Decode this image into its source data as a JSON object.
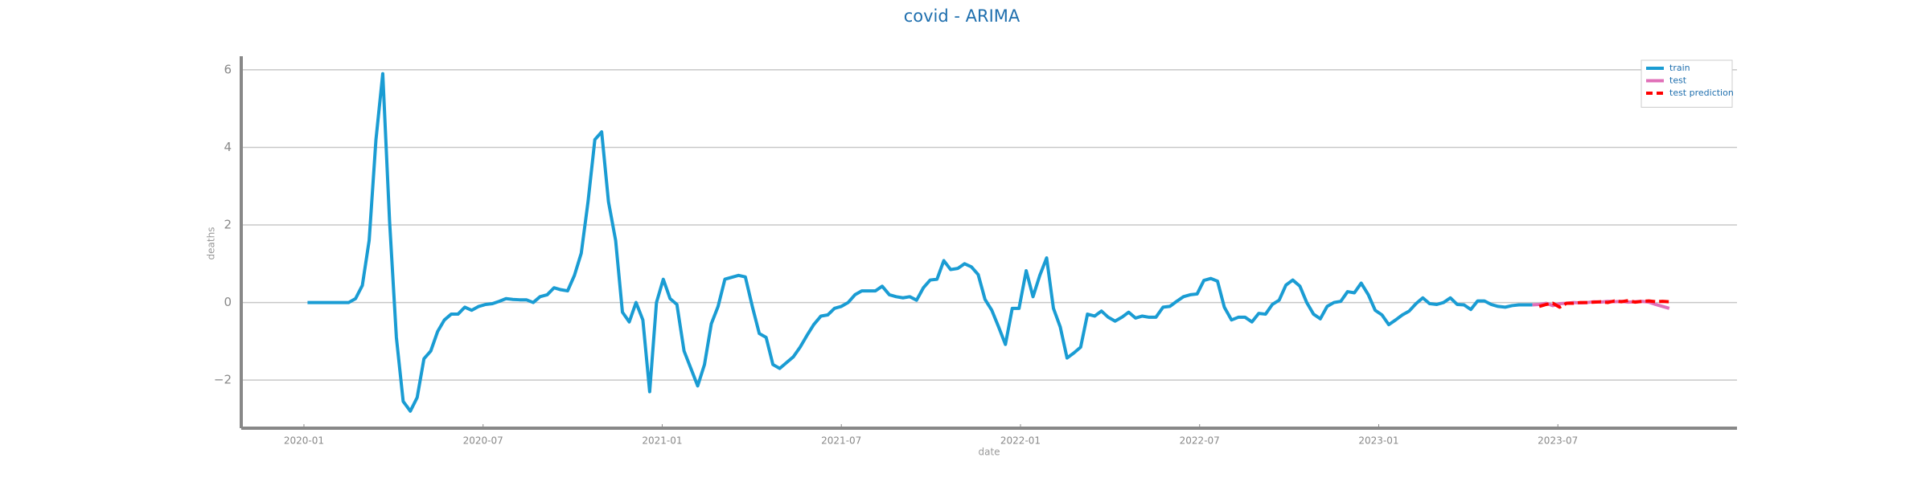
{
  "chart_data": {
    "type": "line",
    "title": "covid - ARIMA",
    "x_label": "date",
    "y_label": "deaths",
    "xlim": [
      2019.825,
      2024.0
    ],
    "ylim": [
      -3.24,
      6.35
    ],
    "xticks": [
      {
        "value": 2020.0,
        "label": "2020-01"
      },
      {
        "value": 2020.5,
        "label": "2020-07"
      },
      {
        "value": 2021.0,
        "label": "2021-01"
      },
      {
        "value": 2021.5,
        "label": "2021-07"
      },
      {
        "value": 2022.0,
        "label": "2022-01"
      },
      {
        "value": 2022.5,
        "label": "2022-07"
      },
      {
        "value": 2023.0,
        "label": "2023-01"
      },
      {
        "value": 2023.5,
        "label": "2023-07"
      }
    ],
    "yticks": [
      {
        "value": -2,
        "label": "−2"
      },
      0,
      2,
      4,
      6
    ],
    "grid": true,
    "legend": "upper right",
    "series": [
      {
        "name": "train",
        "color": "#1a9cd3",
        "dashed": false,
        "x": [
          2020.01,
          2020.029,
          2020.048,
          2020.067,
          2020.086,
          2020.106,
          2020.125,
          2020.144,
          2020.163,
          2020.182,
          2020.201,
          2020.22,
          2020.239,
          2020.258,
          2020.277,
          2020.297,
          2020.316,
          2020.335,
          2020.354,
          2020.373,
          2020.392,
          2020.411,
          2020.43,
          2020.449,
          2020.468,
          2020.488,
          2020.507,
          2020.526,
          2020.545,
          2020.564,
          2020.583,
          2020.602,
          2020.621,
          2020.64,
          2020.659,
          2020.679,
          2020.698,
          2020.717,
          2020.736,
          2020.755,
          2020.774,
          2020.793,
          2020.812,
          2020.831,
          2020.85,
          2020.87,
          2020.889,
          2020.908,
          2020.927,
          2020.946,
          2020.965,
          2020.984,
          2021.003,
          2021.022,
          2021.041,
          2021.061,
          2021.08,
          2021.099,
          2021.118,
          2021.137,
          2021.156,
          2021.175,
          2021.194,
          2021.213,
          2021.232,
          2021.252,
          2021.271,
          2021.29,
          2021.309,
          2021.328,
          2021.347,
          2021.366,
          2021.385,
          2021.404,
          2021.423,
          2021.443,
          2021.462,
          2021.481,
          2021.5,
          2021.519,
          2021.538,
          2021.557,
          2021.576,
          2021.595,
          2021.614,
          2021.634,
          2021.653,
          2021.672,
          2021.691,
          2021.71,
          2021.729,
          2021.748,
          2021.767,
          2021.786,
          2021.805,
          2021.825,
          2021.844,
          2021.863,
          2021.882,
          2021.901,
          2021.92,
          2021.939,
          2021.958,
          2021.977,
          2021.996,
          2022.016,
          2022.035,
          2022.054,
          2022.073,
          2022.092,
          2022.111,
          2022.13,
          2022.149,
          2022.168,
          2022.187,
          2022.207,
          2022.226,
          2022.245,
          2022.264,
          2022.283,
          2022.302,
          2022.321,
          2022.34,
          2022.359,
          2022.378,
          2022.398,
          2022.417,
          2022.436,
          2022.455,
          2022.474,
          2022.493,
          2022.512,
          2022.531,
          2022.55,
          2022.569,
          2022.589,
          2022.608,
          2022.627,
          2022.646,
          2022.665,
          2022.684,
          2022.703,
          2022.722,
          2022.741,
          2022.76,
          2022.78,
          2022.799,
          2022.818,
          2022.837,
          2022.856,
          2022.875,
          2022.894,
          2022.913,
          2022.932,
          2022.951,
          2022.971,
          2022.99,
          2023.009,
          2023.028,
          2023.047,
          2023.066,
          2023.085,
          2023.104,
          2023.123,
          2023.142,
          2023.162,
          2023.181,
          2023.2,
          2023.219,
          2023.238,
          2023.257,
          2023.276,
          2023.295,
          2023.314,
          2023.333,
          2023.353,
          2023.372,
          2023.391,
          2023.41,
          2023.429
        ],
        "values": [
          0,
          0,
          0,
          0,
          0,
          0,
          0,
          0.1,
          0.44,
          1.6,
          4.2,
          5.9,
          2.1,
          -0.9,
          -2.55,
          -2.8,
          -2.45,
          -1.45,
          -1.25,
          -0.75,
          -0.45,
          -0.3,
          -0.3,
          -0.12,
          -0.2,
          -0.1,
          -0.05,
          -0.03,
          0.03,
          0.1,
          0.08,
          0.07,
          0.07,
          0,
          0.15,
          0.2,
          0.38,
          0.33,
          0.3,
          0.7,
          1.27,
          2.6,
          4.2,
          4.4,
          2.6,
          1.6,
          -0.25,
          -0.5,
          0,
          -0.45,
          -2.3,
          0,
          0.6,
          0.1,
          -0.05,
          -1.25,
          -1.7,
          -2.15,
          -1.6,
          -0.55,
          -0.1,
          0.6,
          0.65,
          0.7,
          0.66,
          -0.12,
          -0.8,
          -0.9,
          -1.6,
          -1.7,
          -1.55,
          -1.4,
          -1.15,
          -0.85,
          -0.57,
          -0.35,
          -0.32,
          -0.15,
          -0.1,
          0,
          0.2,
          0.3,
          0.3,
          0.3,
          0.42,
          0.2,
          0.15,
          0.12,
          0.15,
          0.06,
          0.38,
          0.58,
          0.6,
          1.08,
          0.85,
          0.88,
          1.0,
          0.92,
          0.72,
          0.08,
          -0.2,
          -0.63,
          -1.08,
          -0.15,
          -0.15,
          0.82,
          0.15,
          0.7,
          1.15,
          -0.15,
          -0.63,
          -1.43,
          -1.3,
          -1.15,
          -0.3,
          -0.35,
          -0.22,
          -0.38,
          -0.48,
          -0.38,
          -0.25,
          -0.4,
          -0.35,
          -0.38,
          -0.38,
          -0.12,
          -0.1,
          0.03,
          0.15,
          0.2,
          0.22,
          0.57,
          0.62,
          0.55,
          -0.12,
          -0.45,
          -0.38,
          -0.38,
          -0.5,
          -0.28,
          -0.3,
          -0.05,
          0.06,
          0.45,
          0.58,
          0.42,
          0,
          -0.3,
          -0.42,
          -0.1,
          0,
          0.03,
          0.28,
          0.25,
          0.5,
          0.2,
          -0.2,
          -0.32,
          -0.57,
          -0.45,
          -0.32,
          -0.22,
          -0.03,
          0.12,
          -0.03,
          -0.05,
          0,
          0.12,
          -0.05,
          -0.06,
          -0.18,
          0.04,
          0.04,
          -0.05,
          -0.1,
          -0.12,
          -0.08,
          -0.06,
          -0.06,
          -0.06
        ]
      },
      {
        "name": "test",
        "color": "#e070b8",
        "dashed": false,
        "x": [
          2023.429,
          2023.448,
          2023.467,
          2023.486,
          2023.505,
          2023.524,
          2023.544,
          2023.563,
          2023.582,
          2023.601,
          2023.62,
          2023.639,
          2023.658,
          2023.677,
          2023.696,
          2023.715,
          2023.735,
          2023.754,
          2023.773,
          2023.792,
          2023.811
        ],
        "values": [
          -0.06,
          -0.05,
          -0.02,
          -0.08,
          -0.03,
          -0.02,
          0,
          -0.01,
          0,
          0.02,
          0.01,
          0.03,
          0.02,
          0.03,
          0.01,
          0.02,
          0.03,
          0.01,
          -0.05,
          -0.1,
          -0.15
        ]
      },
      {
        "name": "test prediction",
        "color": "#ff0000",
        "dashed": true,
        "x": [
          2023.448,
          2023.467,
          2023.486,
          2023.505,
          2023.524,
          2023.544,
          2023.563,
          2023.582,
          2023.601,
          2023.62,
          2023.639,
          2023.658,
          2023.677,
          2023.696,
          2023.715,
          2023.735,
          2023.754,
          2023.773,
          2023.792,
          2023.811
        ],
        "values": [
          -0.1,
          -0.05,
          -0.02,
          -0.12,
          -0.02,
          -0.02,
          0,
          0,
          0.01,
          0.02,
          0,
          0.04,
          0.02,
          0.05,
          0.01,
          0.03,
          0.04,
          0.02,
          0.03,
          0.02
        ]
      }
    ]
  }
}
